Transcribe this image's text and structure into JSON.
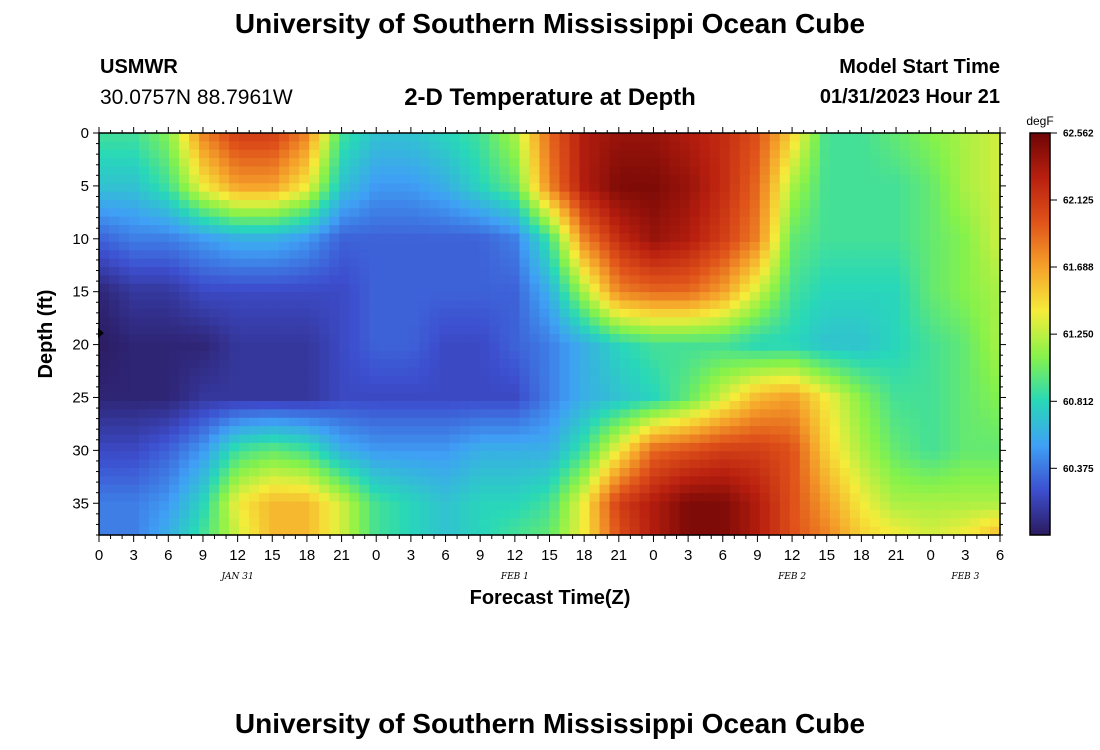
{
  "header": {
    "title": "University of Southern Mississippi Ocean Cube",
    "station": "USMWR",
    "coords": "30.0757N  88.7961W",
    "chart_heading": "2-D Temperature at Depth",
    "model_label": "Model Start Time",
    "model_time": "01/31/2023 Hour 21"
  },
  "footer": {
    "title": "University of Southern Mississippi Ocean Cube"
  },
  "colorbar": {
    "unit": "degF",
    "ticks": [
      "62.562",
      "62.125",
      "61.688",
      "61.250",
      "60.812",
      "60.375"
    ],
    "tick_values": [
      62.562,
      62.125,
      61.688,
      61.25,
      60.812,
      60.375
    ],
    "min": 59.94,
    "max": 62.562,
    "colors": [
      "#2b1a5e",
      "#3d4fcf",
      "#3fa0f5",
      "#28d8b8",
      "#86f24a",
      "#f5ec3a",
      "#f5a12a",
      "#e0531a",
      "#b81f0f",
      "#6e0505"
    ]
  },
  "chart_data": {
    "type": "heatmap",
    "title": "2-D Temperature at Depth",
    "xlabel": "Forecast Time(Z)",
    "ylabel": "Depth (ft)",
    "xlim": [
      0,
      78
    ],
    "ylim": [
      0,
      38
    ],
    "x_units": "hours from 00Z Jan 31",
    "x_tick_values": [
      0,
      3,
      6,
      9,
      12,
      15,
      18,
      21,
      24,
      27,
      30,
      33,
      36,
      39,
      42,
      45,
      48,
      51,
      54,
      57,
      60,
      63,
      66,
      69,
      72,
      75,
      78
    ],
    "x_tick_labels": [
      "0",
      "3",
      "6",
      "9",
      "12",
      "15",
      "18",
      "21",
      "0",
      "3",
      "6",
      "9",
      "12",
      "15",
      "18",
      "21",
      "0",
      "3",
      "6",
      "9",
      "12",
      "15",
      "18",
      "21",
      "0",
      "3",
      "6"
    ],
    "date_labels": [
      {
        "text": "JAN 31",
        "x": 12
      },
      {
        "text": "FEB 1",
        "x": 36
      },
      {
        "text": "FEB 2",
        "x": 60
      },
      {
        "text": "FEB 3",
        "x": 75
      }
    ],
    "y_tick_values": [
      0,
      5,
      10,
      15,
      20,
      25,
      30,
      35
    ],
    "y_tick_labels": [
      "0",
      "5",
      "10",
      "15",
      "20",
      "25",
      "30",
      "35"
    ],
    "depths": [
      0,
      5,
      10,
      15,
      20,
      25,
      30,
      35,
      38
    ],
    "times": [
      0,
      3,
      6,
      9,
      12,
      15,
      18,
      21,
      24,
      27,
      30,
      33,
      36,
      39,
      42,
      45,
      48,
      51,
      54,
      57,
      60,
      63,
      66,
      69,
      72,
      75,
      78
    ],
    "values": [
      [
        60.9,
        60.9,
        61.1,
        61.8,
        62.1,
        62.1,
        61.8,
        60.9,
        60.7,
        60.7,
        60.8,
        60.9,
        61.2,
        61.9,
        62.3,
        62.4,
        62.4,
        62.3,
        62.2,
        62.0,
        61.5,
        60.9,
        60.9,
        61.0,
        61.1,
        61.2,
        61.3
      ],
      [
        60.7,
        60.7,
        60.9,
        61.4,
        61.7,
        61.7,
        61.4,
        60.7,
        60.5,
        60.5,
        60.6,
        60.8,
        61.0,
        61.8,
        62.3,
        62.5,
        62.5,
        62.4,
        62.2,
        61.9,
        61.2,
        60.9,
        60.9,
        60.9,
        61.0,
        61.2,
        61.3
      ],
      [
        60.3,
        60.4,
        60.4,
        60.5,
        60.6,
        60.6,
        60.5,
        60.3,
        60.3,
        60.3,
        60.3,
        60.3,
        60.4,
        60.9,
        61.8,
        62.2,
        62.4,
        62.3,
        62.1,
        61.8,
        61.0,
        60.9,
        60.9,
        60.9,
        61.0,
        61.1,
        61.3
      ],
      [
        60.0,
        60.1,
        60.1,
        60.2,
        60.2,
        60.2,
        60.2,
        60.2,
        60.3,
        60.3,
        60.3,
        60.3,
        60.3,
        60.6,
        61.2,
        61.8,
        61.9,
        61.9,
        61.7,
        61.3,
        60.9,
        60.8,
        60.8,
        60.8,
        61.0,
        61.1,
        61.2
      ],
      [
        59.95,
        60.0,
        60.0,
        60.0,
        60.1,
        60.1,
        60.1,
        60.2,
        60.3,
        60.3,
        60.2,
        60.2,
        60.3,
        60.4,
        60.6,
        60.8,
        60.9,
        60.9,
        60.9,
        60.8,
        60.8,
        60.7,
        60.7,
        60.8,
        60.9,
        61.0,
        61.2
      ],
      [
        60.0,
        60.0,
        60.0,
        60.1,
        60.1,
        60.1,
        60.1,
        60.2,
        60.2,
        60.2,
        60.2,
        60.2,
        60.2,
        60.4,
        60.6,
        60.7,
        60.8,
        61.0,
        61.3,
        61.6,
        61.7,
        61.4,
        61.1,
        60.9,
        60.9,
        61.0,
        61.1
      ],
      [
        60.2,
        60.2,
        60.3,
        60.5,
        60.9,
        61.0,
        60.9,
        60.6,
        60.5,
        60.5,
        60.5,
        60.6,
        60.6,
        60.6,
        60.9,
        61.4,
        61.9,
        62.0,
        62.1,
        62.1,
        62.0,
        61.5,
        61.2,
        61.0,
        60.9,
        61.0,
        61.0
      ],
      [
        60.4,
        60.4,
        60.5,
        60.8,
        61.4,
        61.6,
        61.6,
        61.3,
        60.9,
        60.8,
        60.7,
        60.8,
        60.8,
        60.9,
        61.4,
        62.1,
        62.3,
        62.5,
        62.5,
        62.3,
        62.0,
        61.7,
        61.4,
        61.2,
        61.2,
        61.2,
        61.2
      ],
      [
        60.4,
        60.4,
        60.6,
        60.9,
        61.3,
        61.6,
        61.6,
        61.3,
        60.9,
        60.8,
        60.7,
        60.8,
        60.9,
        61.0,
        61.4,
        62.0,
        62.3,
        62.5,
        62.5,
        62.3,
        62.0,
        61.8,
        61.5,
        61.4,
        61.3,
        61.4,
        61.6
      ]
    ]
  }
}
